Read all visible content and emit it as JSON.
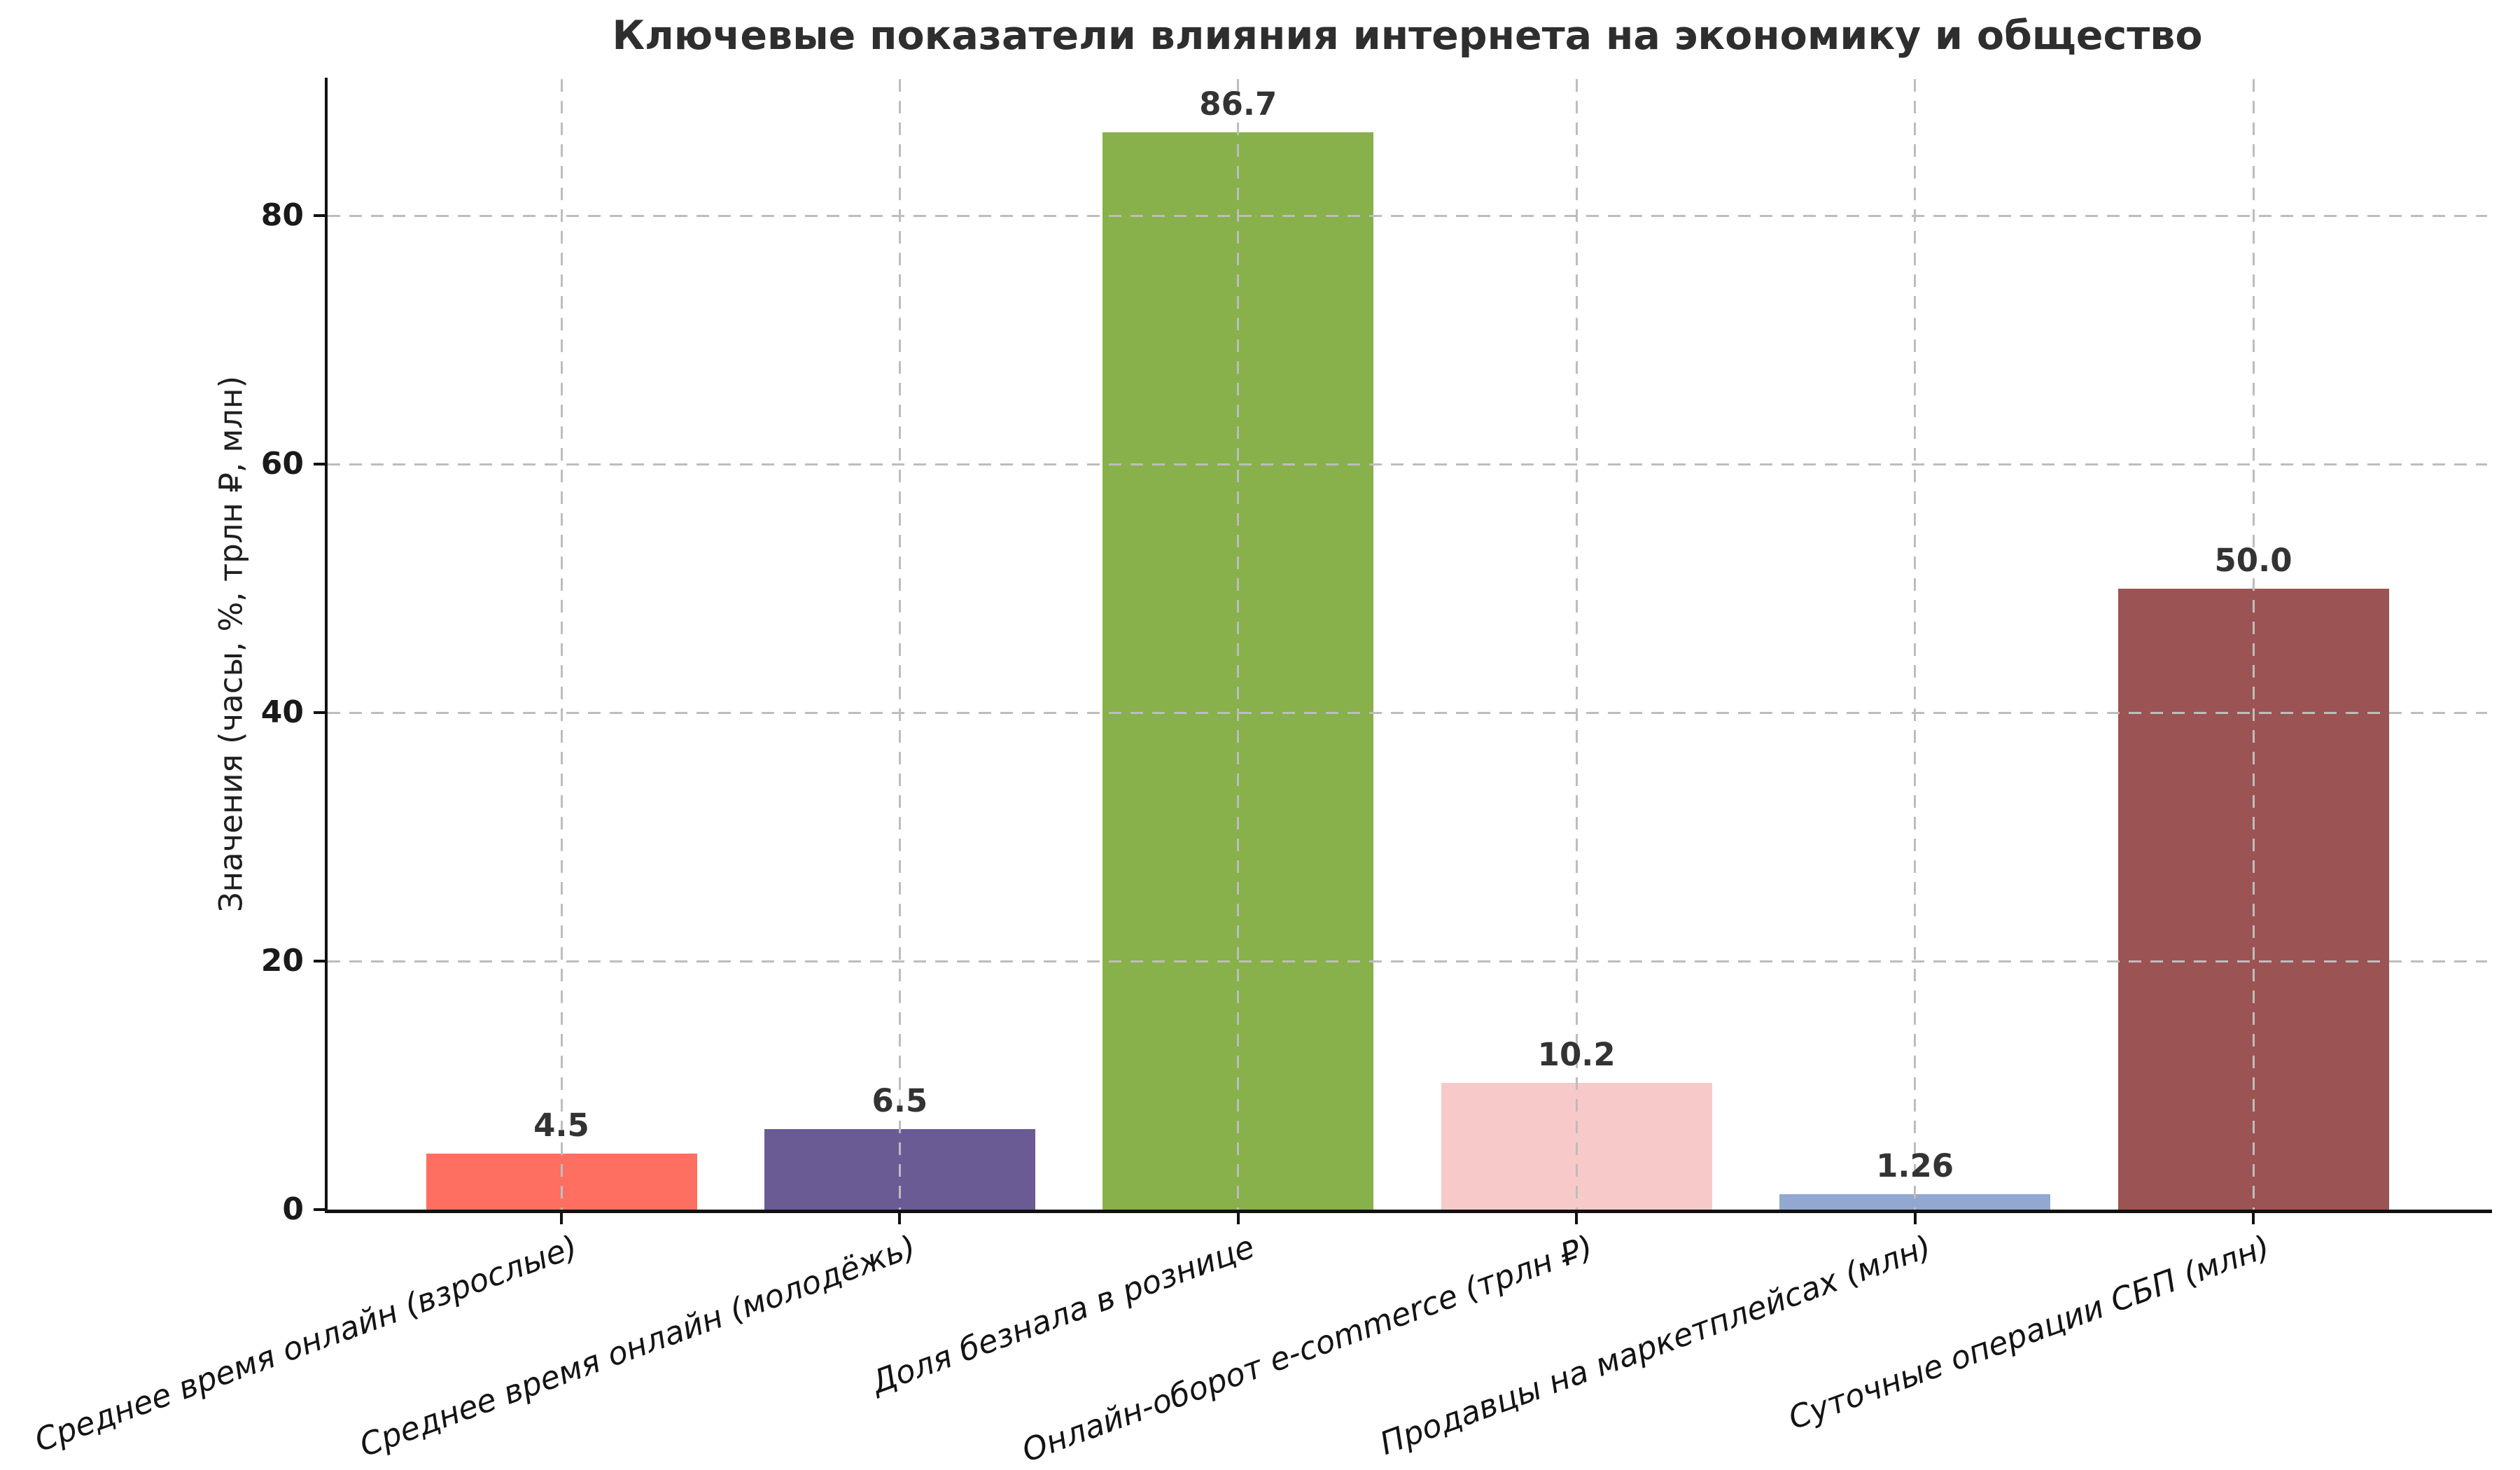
{
  "chart_data": {
    "type": "bar",
    "title": "Ключевые показатели влияния интернета на экономику и общество",
    "ylabel": "Значения (часы, %, трлн ₽, млн)",
    "xlabel": "",
    "categories": [
      "Среднее время онлайн (взрослые)",
      "Среднее время онлайн (молодёжь)",
      "Доля безнала в рознице",
      "Онлайн-оборот e-commerce (трлн ₽)",
      "Продавцы на маркетплейсах (млн)",
      "Суточные операции СБП (млн)"
    ],
    "values": [
      4.5,
      6.5,
      86.7,
      10.2,
      1.26,
      50.0
    ],
    "value_labels": [
      "4.5",
      "6.5",
      "86.7",
      "10.2",
      "1.26",
      "50.0"
    ],
    "bar_colors": [
      "#FF6F61",
      "#6B5B95",
      "#88B04B",
      "#F7CAC9",
      "#92A8D1",
      "#9B5453"
    ],
    "yticks": [
      0,
      20,
      40,
      60,
      80
    ],
    "ytick_labels": [
      "0",
      "20",
      "40",
      "60",
      "80"
    ],
    "ylim": [
      0,
      91
    ],
    "grid": {
      "style": "dashed",
      "axes": "both",
      "color": "#bdbdbd",
      "drawn_over_bars": true
    },
    "legend": "none",
    "x_tick_rotation_deg": 20,
    "x_tick_style": "italic"
  },
  "styles": {
    "background": "#ffffff",
    "title_color": "#2e2e2e",
    "text_color": "#1a1a1a",
    "axis_color": "#111111",
    "value_label_color": "#333333"
  }
}
